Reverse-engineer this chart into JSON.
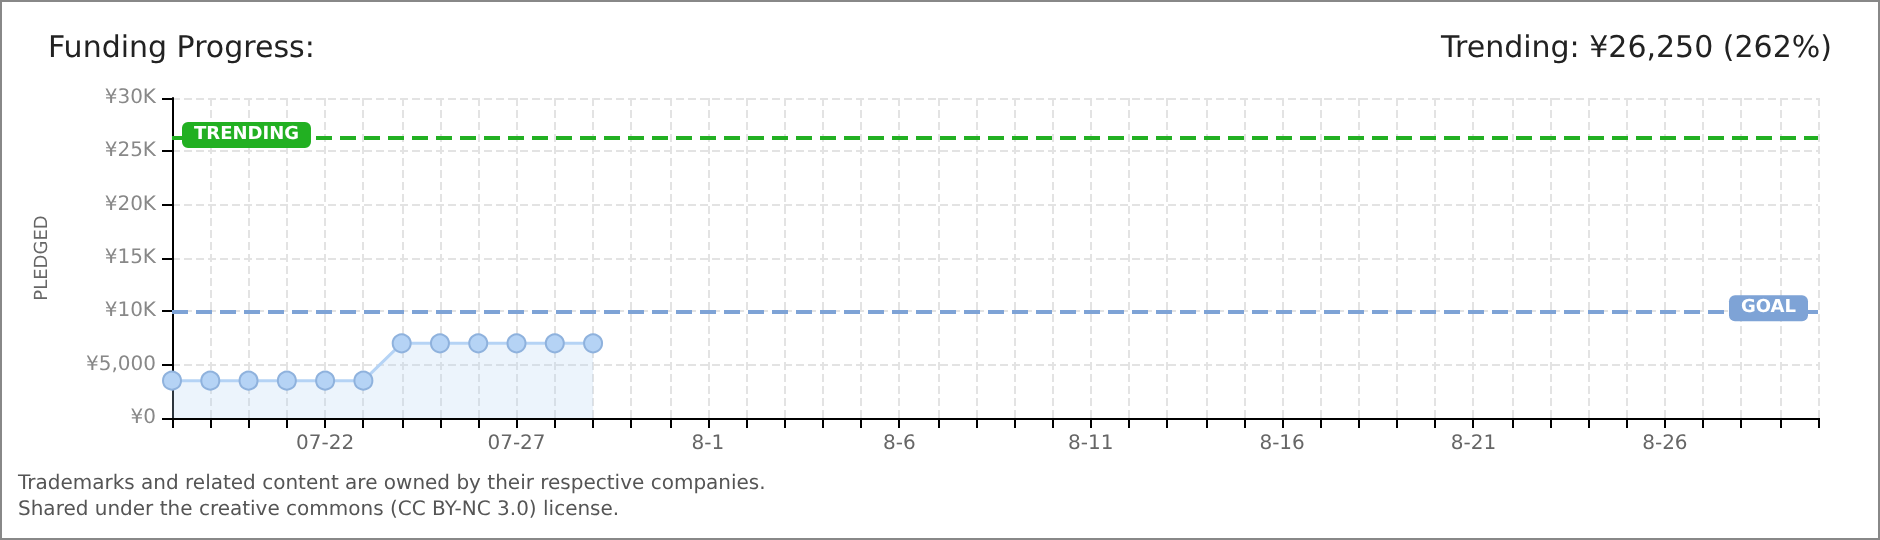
{
  "chart_data": {
    "type": "area",
    "title": "Funding Progress:",
    "subtitle": "Trending: ¥26,250 (262%)",
    "ylabel": "PLEDGED",
    "categories": [
      null,
      null,
      null,
      null,
      "07-22",
      null,
      null,
      null,
      null,
      "07-27",
      null,
      null,
      null,
      null,
      "8-1",
      null,
      null,
      null,
      null,
      "8-6",
      null,
      null,
      null,
      null,
      "8-11",
      null,
      null,
      null,
      null,
      "8-16",
      null,
      null,
      null,
      null,
      "8-21",
      null,
      null,
      null,
      null,
      "8-26",
      null,
      null,
      null,
      null
    ],
    "series": [
      {
        "color": "#b5d3f5",
        "values": [
          3500,
          3500,
          3500,
          3500,
          3500,
          3500,
          7000,
          7000,
          7000,
          7000,
          7000,
          7000,
          null,
          null,
          null,
          null,
          null,
          null,
          null,
          null,
          null,
          null,
          null,
          null,
          null,
          null,
          null,
          null,
          null,
          null,
          null,
          null,
          null,
          null,
          null,
          null,
          null,
          null,
          null,
          null,
          null,
          null,
          null,
          null
        ]
      }
    ],
    "ylim": [
      0,
      30000
    ],
    "yticks": [
      {
        "value": 0,
        "label": "¥0"
      },
      {
        "value": 5000,
        "label": "¥5,000"
      },
      {
        "value": 10000,
        "label": "¥10K"
      },
      {
        "value": 15000,
        "label": "¥15K"
      },
      {
        "value": 20000,
        "label": "¥20K"
      },
      {
        "value": 25000,
        "label": "¥25K"
      },
      {
        "value": 30000,
        "label": "¥30K"
      }
    ],
    "ref_lines": [
      {
        "axis": "y",
        "value": 26250,
        "label": "TRENDING",
        "color": "#22b022",
        "line_style": "dashed"
      },
      {
        "axis": "y",
        "value": 10000,
        "label": "GOAL",
        "color": "#7ea3d6",
        "line_style": "dashed"
      }
    ],
    "grid": true,
    "marker": "circle",
    "line_style": "solid",
    "annotations": [
      "Trademarks and related content are owned by their respective companies.",
      "Shared under the creative commons (CC BY-NC 3.0) license."
    ]
  }
}
